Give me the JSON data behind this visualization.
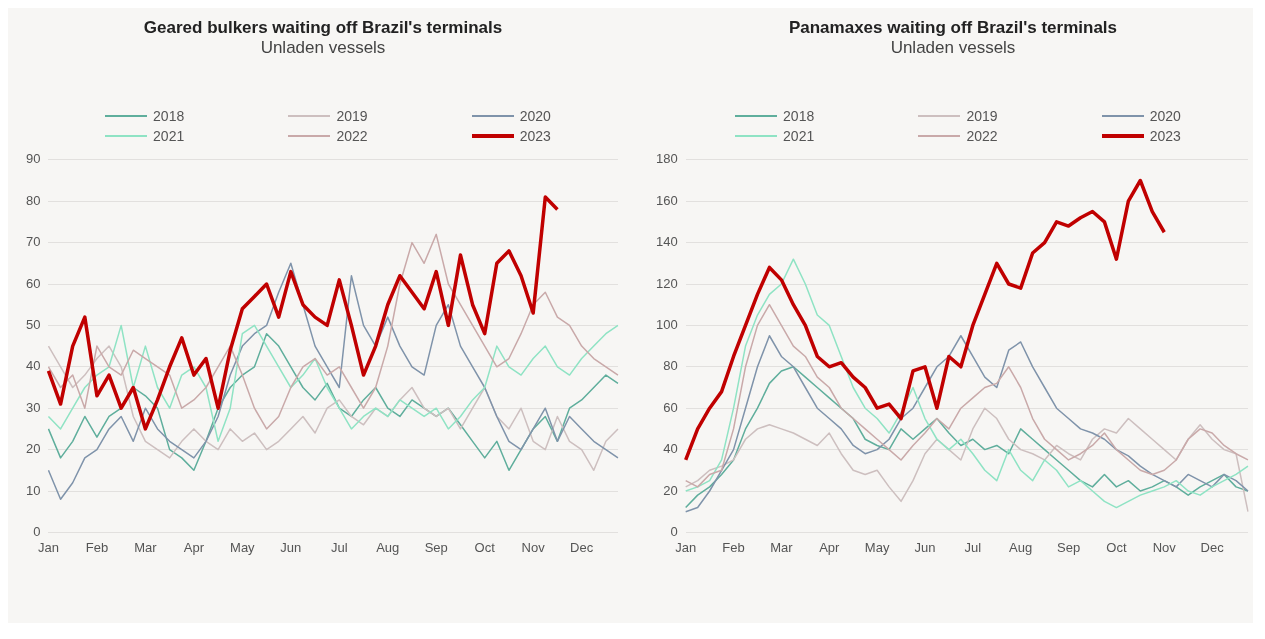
{
  "chart_data": [
    {
      "type": "line",
      "title": "Geared bulkers waiting off Brazil's terminals",
      "subtitle": "Unladen vessels",
      "legend": "top",
      "grid": "y",
      "marker": "none",
      "line_style": "solid",
      "categories": [
        "Jan",
        null,
        null,
        null,
        "Feb",
        null,
        null,
        null,
        "Mar",
        null,
        null,
        null,
        "Apr",
        null,
        null,
        null,
        "May",
        null,
        null,
        null,
        "Jun",
        null,
        null,
        null,
        "Jul",
        null,
        null,
        null,
        "Aug",
        null,
        null,
        null,
        "Sep",
        null,
        null,
        null,
        "Oct",
        null,
        null,
        null,
        "Nov",
        null,
        null,
        null,
        "Dec",
        null,
        null,
        null
      ],
      "ylim": [
        0,
        90
      ],
      "yticks": [
        0,
        10,
        20,
        30,
        40,
        50,
        60,
        70,
        80,
        90
      ],
      "series": [
        {
          "name": "2018",
          "color": "#5fae9c",
          "values": [
            25,
            18,
            22,
            28,
            23,
            28,
            30,
            35,
            33,
            30,
            20,
            18,
            15,
            22,
            30,
            35,
            38,
            40,
            48,
            45,
            40,
            35,
            32,
            36,
            30,
            28,
            32,
            35,
            30,
            28,
            32,
            30,
            28,
            30,
            26,
            22,
            18,
            22,
            15,
            20,
            25,
            28,
            22,
            30,
            32,
            35,
            38,
            36
          ]
        },
        {
          "name": "2019",
          "color": "#cdbfbf",
          "values": [
            45,
            40,
            35,
            38,
            42,
            45,
            40,
            28,
            22,
            20,
            18,
            22,
            25,
            22,
            20,
            25,
            22,
            24,
            20,
            22,
            25,
            28,
            24,
            30,
            32,
            28,
            26,
            30,
            28,
            32,
            35,
            30,
            28,
            30,
            25,
            30,
            35,
            28,
            25,
            30,
            22,
            20,
            28,
            22,
            20,
            15,
            22,
            25
          ]
        },
        {
          "name": "2020",
          "color": "#7f93aa",
          "values": [
            15,
            8,
            12,
            18,
            20,
            25,
            28,
            22,
            30,
            25,
            22,
            20,
            18,
            22,
            28,
            38,
            45,
            48,
            50,
            58,
            65,
            55,
            45,
            40,
            35,
            62,
            50,
            45,
            52,
            45,
            40,
            38,
            50,
            55,
            45,
            40,
            35,
            28,
            22,
            20,
            25,
            30,
            22,
            28,
            25,
            22,
            20,
            18
          ]
        },
        {
          "name": "2021",
          "color": "#8fe3c4",
          "values": [
            28,
            25,
            30,
            35,
            38,
            40,
            50,
            35,
            45,
            35,
            30,
            38,
            40,
            35,
            22,
            30,
            48,
            50,
            45,
            40,
            35,
            38,
            42,
            35,
            30,
            25,
            28,
            30,
            28,
            32,
            30,
            28,
            30,
            25,
            28,
            32,
            35,
            45,
            40,
            38,
            42,
            45,
            40,
            38,
            42,
            45,
            48,
            50
          ]
        },
        {
          "name": "2022",
          "color": "#c9a9a9",
          "values": [
            40,
            35,
            38,
            30,
            45,
            40,
            38,
            44,
            42,
            40,
            38,
            30,
            32,
            35,
            40,
            45,
            38,
            30,
            25,
            28,
            35,
            40,
            42,
            38,
            40,
            35,
            30,
            35,
            45,
            60,
            70,
            65,
            72,
            60,
            55,
            50,
            45,
            40,
            42,
            48,
            55,
            58,
            52,
            50,
            45,
            42,
            40,
            38
          ]
        },
        {
          "name": "2023",
          "color": "#c00000",
          "values": [
            39,
            31,
            45,
            52,
            33,
            38,
            30,
            35,
            25,
            32,
            40,
            47,
            38,
            42,
            30,
            44,
            54,
            57,
            60,
            52,
            63,
            55,
            52,
            50,
            61,
            50,
            38,
            45,
            55,
            62,
            58,
            54,
            63,
            50,
            67,
            55,
            48,
            65,
            68,
            62,
            53,
            81,
            78,
            null,
            null,
            null,
            null,
            null
          ]
        }
      ]
    },
    {
      "type": "line",
      "title": "Panamaxes waiting off Brazil's terminals",
      "subtitle": "Unladen vessels",
      "legend": "top",
      "grid": "y",
      "marker": "none",
      "line_style": "solid",
      "categories": [
        "Jan",
        null,
        null,
        null,
        "Feb",
        null,
        null,
        null,
        "Mar",
        null,
        null,
        null,
        "Apr",
        null,
        null,
        null,
        "May",
        null,
        null,
        null,
        "Jun",
        null,
        null,
        null,
        "Jul",
        null,
        null,
        null,
        "Aug",
        null,
        null,
        null,
        "Sep",
        null,
        null,
        null,
        "Oct",
        null,
        null,
        null,
        "Nov",
        null,
        null,
        null,
        "Dec",
        null,
        null,
        null
      ],
      "ylim": [
        0,
        180
      ],
      "yticks": [
        0,
        20,
        40,
        60,
        80,
        100,
        120,
        140,
        160,
        180
      ],
      "series": [
        {
          "name": "2018",
          "color": "#5fae9c",
          "values": [
            12,
            18,
            22,
            28,
            35,
            50,
            60,
            72,
            78,
            80,
            75,
            70,
            65,
            60,
            55,
            45,
            42,
            40,
            50,
            45,
            50,
            55,
            48,
            42,
            45,
            40,
            42,
            38,
            50,
            45,
            40,
            35,
            30,
            25,
            22,
            28,
            22,
            25,
            20,
            22,
            25,
            22,
            18,
            22,
            25,
            28,
            22,
            20
          ]
        },
        {
          "name": "2019",
          "color": "#cdbfbf",
          "values": [
            22,
            25,
            30,
            32,
            35,
            45,
            50,
            52,
            50,
            48,
            45,
            42,
            48,
            38,
            30,
            28,
            30,
            22,
            15,
            25,
            38,
            45,
            40,
            35,
            50,
            60,
            55,
            45,
            40,
            38,
            35,
            42,
            38,
            35,
            45,
            50,
            48,
            55,
            50,
            45,
            40,
            35,
            45,
            52,
            45,
            40,
            38,
            10
          ]
        },
        {
          "name": "2020",
          "color": "#7f93aa",
          "values": [
            10,
            12,
            20,
            30,
            40,
            60,
            80,
            95,
            85,
            80,
            70,
            60,
            55,
            50,
            42,
            38,
            40,
            45,
            55,
            60,
            70,
            80,
            85,
            95,
            85,
            75,
            70,
            88,
            92,
            80,
            70,
            60,
            55,
            50,
            48,
            45,
            40,
            37,
            32,
            28,
            25,
            22,
            28,
            25,
            22,
            28,
            25,
            20
          ]
        },
        {
          "name": "2021",
          "color": "#8fe3c4",
          "values": [
            20,
            22,
            25,
            35,
            60,
            90,
            105,
            115,
            120,
            132,
            120,
            105,
            100,
            85,
            70,
            60,
            55,
            48,
            58,
            70,
            55,
            45,
            40,
            45,
            38,
            30,
            25,
            40,
            30,
            25,
            35,
            30,
            22,
            25,
            20,
            15,
            12,
            15,
            18,
            20,
            22,
            25,
            20,
            18,
            22,
            25,
            28,
            32
          ]
        },
        {
          "name": "2022",
          "color": "#c9a9a9",
          "values": [
            25,
            22,
            28,
            30,
            50,
            80,
            100,
            110,
            100,
            90,
            85,
            75,
            70,
            60,
            55,
            50,
            45,
            40,
            35,
            42,
            48,
            55,
            50,
            60,
            65,
            70,
            72,
            80,
            70,
            55,
            45,
            40,
            35,
            38,
            42,
            48,
            40,
            35,
            30,
            28,
            30,
            35,
            45,
            50,
            48,
            42,
            38,
            35
          ]
        },
        {
          "name": "2023",
          "color": "#c00000",
          "values": [
            35,
            50,
            60,
            68,
            85,
            100,
            115,
            128,
            122,
            110,
            100,
            85,
            80,
            82,
            75,
            70,
            60,
            62,
            55,
            78,
            80,
            60,
            85,
            80,
            100,
            115,
            130,
            120,
            118,
            135,
            140,
            150,
            148,
            152,
            155,
            150,
            132,
            160,
            170,
            155,
            145,
            null,
            null,
            null,
            null,
            null,
            null,
            null
          ]
        }
      ]
    }
  ]
}
